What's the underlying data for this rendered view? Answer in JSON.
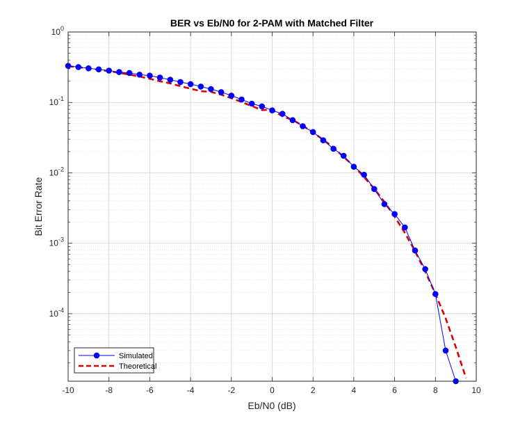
{
  "chart_data": {
    "type": "line",
    "title": "BER vs Eb/N0 for 2-PAM with Matched Filter",
    "xlabel": "Eb/N0 (dB)",
    "ylabel": "Bit Error Rate",
    "xlim": [
      -10,
      10
    ],
    "ylim": [
      1.1e-05,
      1
    ],
    "yscale": "log",
    "grid": true,
    "minor_grid": true,
    "legend_position": "bottom-left",
    "x_ticks": [
      "-10",
      "-8",
      "-6",
      "-4",
      "-2",
      "0",
      "2",
      "4",
      "6",
      "8",
      "10"
    ],
    "y_ticks": [
      {
        "base": "10",
        "exp": "0"
      },
      {
        "base": "10",
        "exp": "-1"
      },
      {
        "base": "10",
        "exp": "-2"
      },
      {
        "base": "10",
        "exp": "-3"
      },
      {
        "base": "10",
        "exp": "-4"
      }
    ],
    "series": [
      {
        "name": "Simulated",
        "color": "#0000ff",
        "marker": "circle",
        "line_style": "solid",
        "x": [
          -10,
          -9.5,
          -9,
          -8.5,
          -8,
          -7.5,
          -7,
          -6.5,
          -6,
          -5.5,
          -5,
          -4.5,
          -4,
          -3.5,
          -3,
          -2.5,
          -2,
          -1.5,
          -1,
          -0.5,
          0,
          0.5,
          1,
          1.5,
          2,
          2.5,
          3,
          3.5,
          4,
          4.5,
          5,
          5.5,
          6,
          6.5,
          7,
          7.5,
          8,
          8.5,
          9
        ],
        "y": [
          0.33,
          0.318,
          0.305,
          0.295,
          0.283,
          0.27,
          0.262,
          0.248,
          0.24,
          0.225,
          0.21,
          0.195,
          0.182,
          0.168,
          0.155,
          0.14,
          0.125,
          0.11,
          0.096,
          0.088,
          0.077,
          0.069,
          0.056,
          0.046,
          0.038,
          0.029,
          0.022,
          0.0175,
          0.0122,
          0.0094,
          0.0059,
          0.0036,
          0.0026,
          0.00168,
          0.00079,
          0.00043,
          0.00019,
          3e-05,
          1.1e-05
        ]
      },
      {
        "name": "Theoretical",
        "color": "#d90000",
        "line_style": "dashed",
        "x": [
          -10,
          -9.5,
          -9,
          -8.5,
          -8,
          -7.5,
          -7,
          -6.5,
          -6,
          -5.5,
          -5,
          -4.5,
          -4,
          -3.5,
          -3,
          -2.5,
          -2,
          -1.5,
          -1,
          -0.5,
          0,
          0.5,
          1,
          1.5,
          2,
          2.5,
          3,
          3.5,
          4,
          4.5,
          5,
          5.5,
          6,
          6.5,
          7,
          7.5,
          8,
          8.5,
          9,
          9.5
        ],
        "y": [
          0.3274,
          0.3161,
          0.304,
          0.2913,
          0.2779,
          0.2638,
          0.2488,
          0.2332,
          0.2167,
          0.1998,
          0.1861,
          0.1704,
          0.1565,
          0.1445,
          0.1413,
          0.1288,
          0.1151,
          0.1015,
          0.0887,
          0.078,
          0.0786,
          0.0635,
          0.0563,
          0.0468,
          0.0375,
          0.0296,
          0.0229,
          0.0168,
          0.0125,
          0.00872,
          0.00595,
          0.00387,
          0.00239,
          0.00141,
          0.00077,
          0.000396,
          0.000191,
          8.62e-05,
          3.36e-05,
          1.22e-05
        ]
      }
    ]
  }
}
